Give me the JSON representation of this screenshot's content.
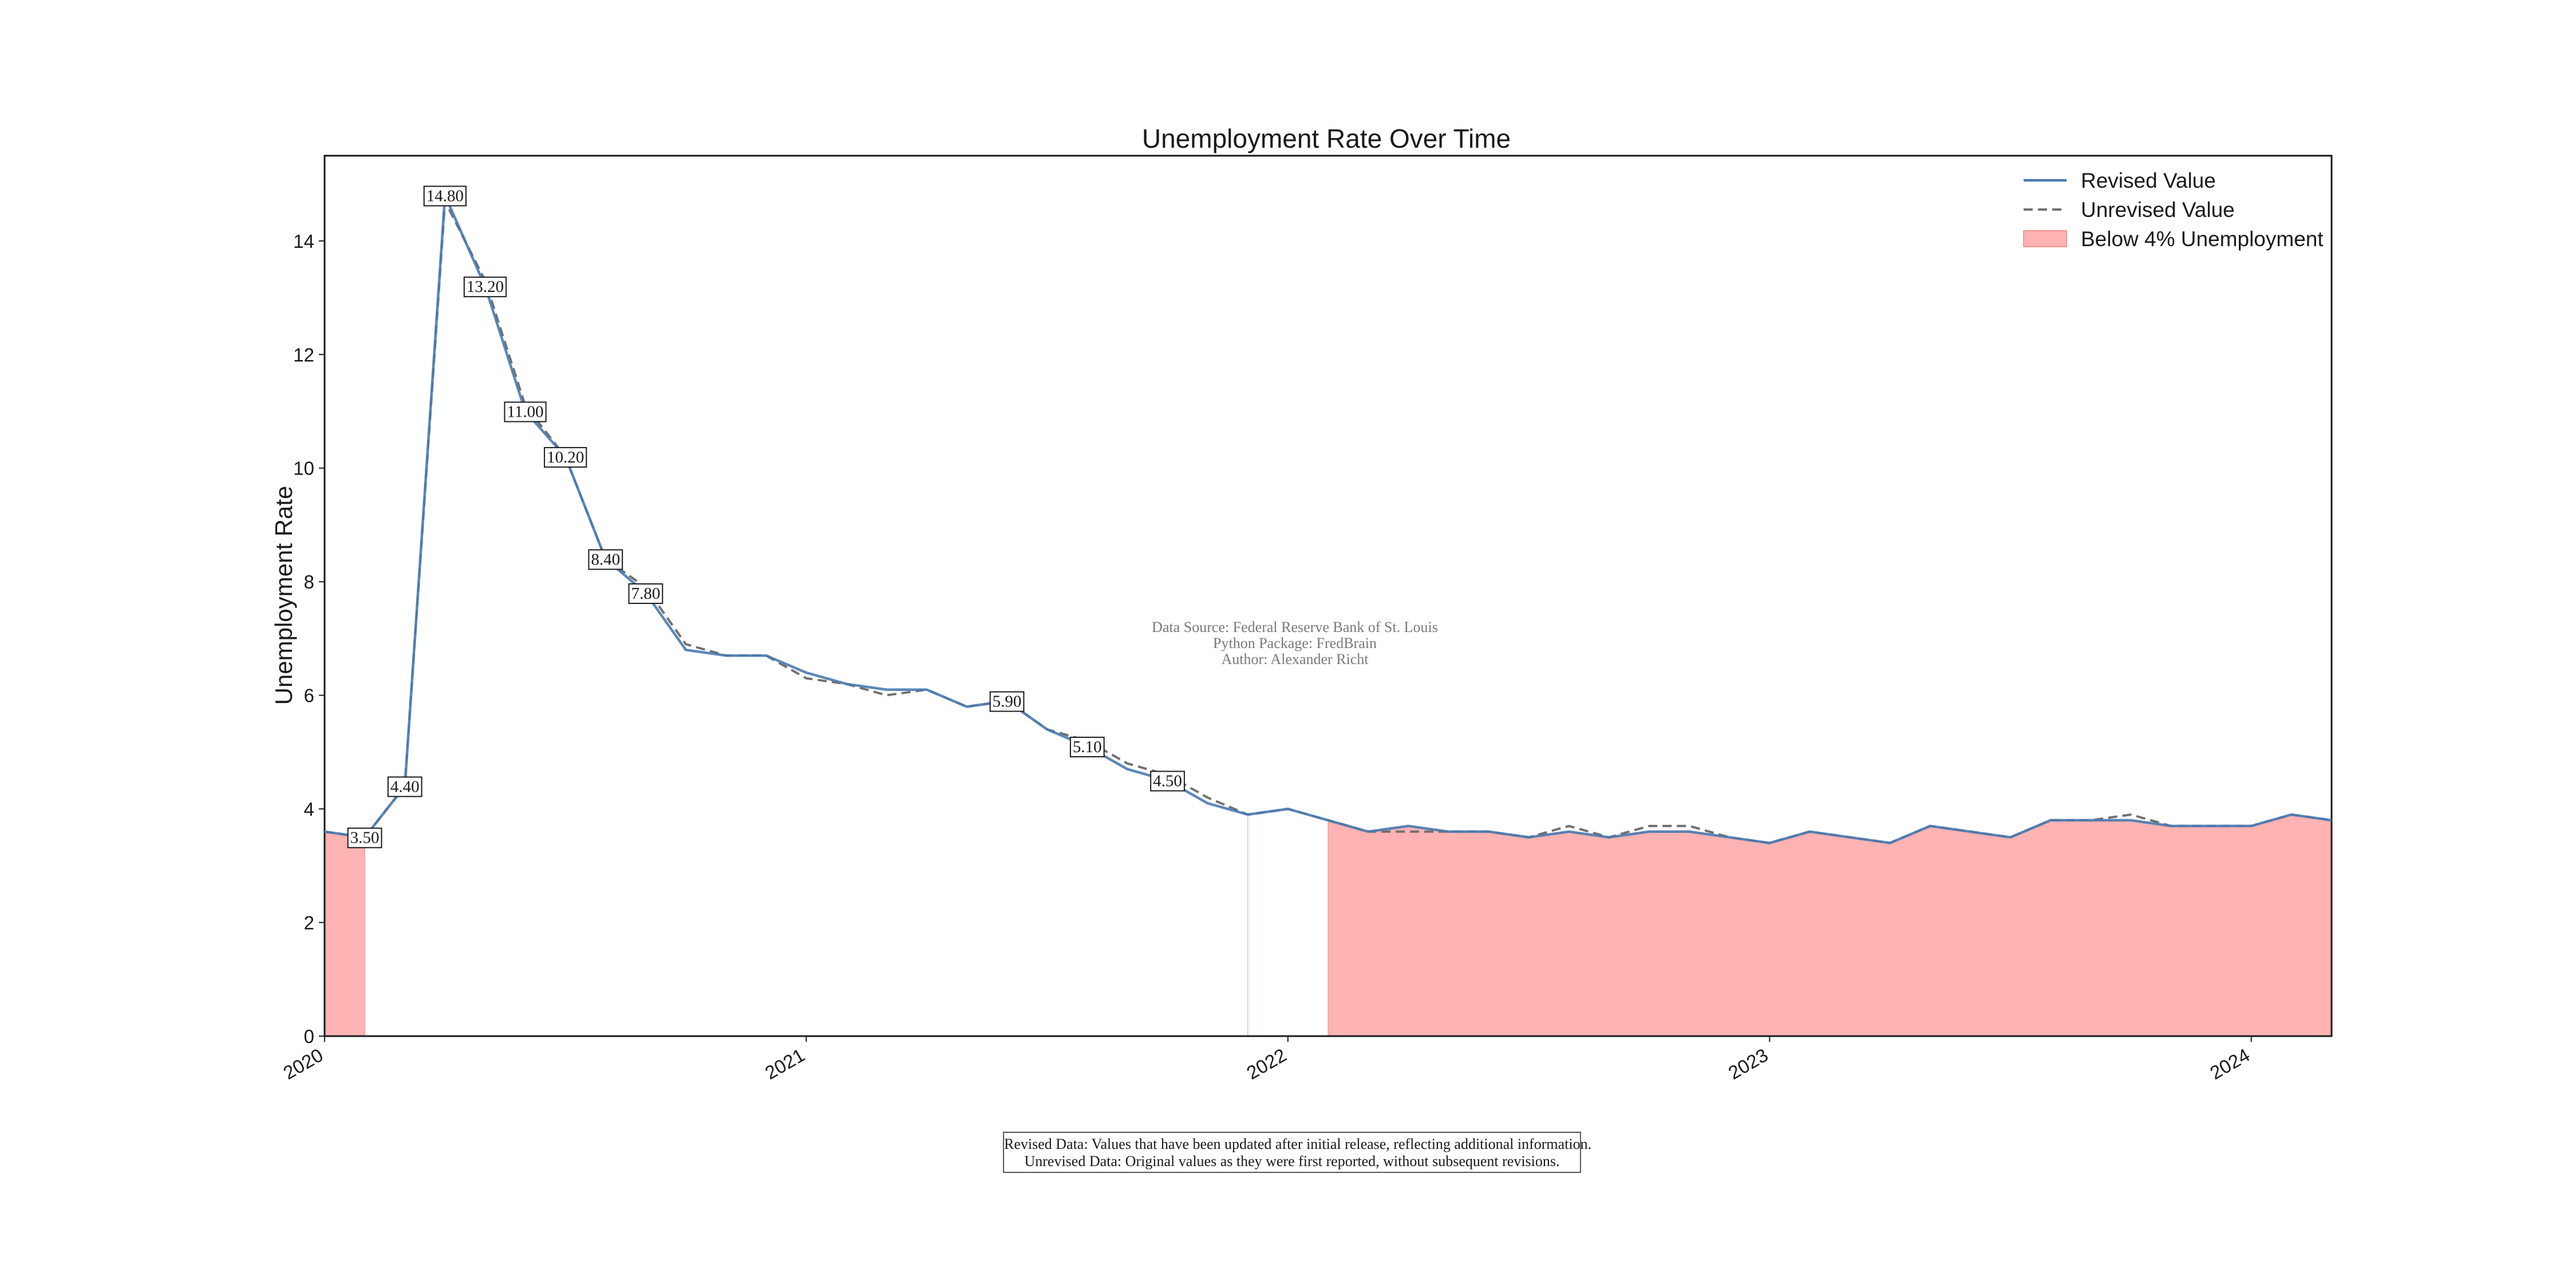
{
  "chart_data": {
    "type": "line",
    "title": "Unemployment Rate Over Time",
    "xlabel": "",
    "ylabel": "Unemployment Rate",
    "xlim": [
      "2020-01-01",
      "2024-03-01"
    ],
    "ylim": [
      0,
      15.5
    ],
    "x_ticks": [
      "2020",
      "2021",
      "2022",
      "2023",
      "2024"
    ],
    "y_ticks": [
      0,
      2,
      4,
      6,
      8,
      10,
      12,
      14
    ],
    "grid": false,
    "legend": {
      "placement": "top-right",
      "entries": [
        "Revised Value",
        "Unrevised Value",
        "Below 4% Unemployment"
      ]
    },
    "colors": {
      "revised": "#4a7ab0",
      "unrevised": "#707070",
      "shade": "#ffb3b3",
      "shade_edge": "#f08080"
    },
    "x": [
      "2020-01-01",
      "2020-02-01",
      "2020-03-01",
      "2020-04-01",
      "2020-05-01",
      "2020-06-01",
      "2020-07-01",
      "2020-08-01",
      "2020-09-01",
      "2020-10-01",
      "2020-11-01",
      "2020-12-01",
      "2021-01-01",
      "2021-02-01",
      "2021-03-01",
      "2021-04-01",
      "2021-05-01",
      "2021-06-01",
      "2021-07-01",
      "2021-08-01",
      "2021-09-01",
      "2021-10-01",
      "2021-11-01",
      "2021-12-01",
      "2022-01-01",
      "2022-02-01",
      "2022-03-01",
      "2022-04-01",
      "2022-05-01",
      "2022-06-01",
      "2022-07-01",
      "2022-08-01",
      "2022-09-01",
      "2022-10-01",
      "2022-11-01",
      "2022-12-01",
      "2023-01-01",
      "2023-02-01",
      "2023-03-01",
      "2023-04-01",
      "2023-05-01",
      "2023-06-01",
      "2023-07-01",
      "2023-08-01",
      "2023-09-01",
      "2023-10-01",
      "2023-11-01",
      "2023-12-01",
      "2024-01-01",
      "2024-02-01",
      "2024-03-01"
    ],
    "series": [
      {
        "name": "Revised Value",
        "style": "solid",
        "values": [
          3.6,
          3.5,
          4.4,
          14.8,
          13.2,
          11.0,
          10.2,
          8.4,
          7.8,
          6.8,
          6.7,
          6.7,
          6.4,
          6.2,
          6.1,
          6.1,
          5.8,
          5.9,
          5.4,
          5.1,
          4.7,
          4.5,
          4.1,
          3.9,
          4.0,
          3.8,
          3.6,
          3.7,
          3.6,
          3.6,
          3.5,
          3.6,
          3.5,
          3.6,
          3.6,
          3.5,
          3.4,
          3.6,
          3.5,
          3.4,
          3.7,
          3.6,
          3.5,
          3.8,
          3.8,
          3.8,
          3.7,
          3.7,
          3.7,
          3.9,
          3.8
        ]
      },
      {
        "name": "Unrevised Value",
        "style": "dashed",
        "values": [
          3.6,
          3.5,
          4.4,
          14.7,
          13.3,
          11.1,
          10.2,
          8.4,
          7.9,
          6.9,
          6.7,
          6.7,
          6.3,
          6.2,
          6.0,
          6.1,
          5.8,
          5.9,
          5.4,
          5.2,
          4.8,
          4.6,
          4.2,
          3.9,
          4.0,
          3.8,
          3.6,
          3.6,
          3.6,
          3.6,
          3.5,
          3.7,
          3.5,
          3.7,
          3.7,
          3.5,
          3.4,
          3.6,
          3.5,
          3.4,
          3.7,
          3.6,
          3.5,
          3.8,
          3.8,
          3.9,
          3.7,
          3.7,
          3.7,
          3.9,
          3.8
        ]
      }
    ],
    "data_labels": [
      {
        "x": "2020-02-01",
        "text": "3.50"
      },
      {
        "x": "2020-03-01",
        "text": "4.40"
      },
      {
        "x": "2020-04-01",
        "text": "14.80"
      },
      {
        "x": "2020-05-01",
        "text": "13.20"
      },
      {
        "x": "2020-06-01",
        "text": "11.00"
      },
      {
        "x": "2020-07-01",
        "text": "10.20"
      },
      {
        "x": "2020-08-01",
        "text": "8.40"
      },
      {
        "x": "2020-09-01",
        "text": "7.80"
      },
      {
        "x": "2021-06-01",
        "text": "5.90"
      },
      {
        "x": "2021-08-01",
        "text": "5.10"
      },
      {
        "x": "2021-10-01",
        "text": "4.50"
      }
    ],
    "threshold": 4,
    "annotation_lines": [
      "Data Source: Federal Reserve Bank of St. Louis",
      "Python Package: FredBrain",
      "Author: Alexander Richt"
    ],
    "notes": [
      "Revised Data: Values that have been updated after initial release, reflecting additional information.",
      "Unrevised Data: Original values as they were first reported, without subsequent revisions."
    ]
  }
}
